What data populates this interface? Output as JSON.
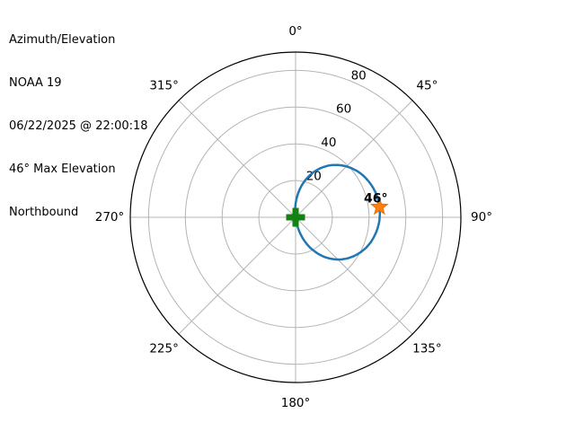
{
  "header": {
    "lines": [
      "Azimuth/Elevation",
      "NOAA 19",
      "06/22/2025 @ 22:00:18",
      "46° Max Elevation",
      "Northbound"
    ]
  },
  "colors": {
    "background": "#ffffff",
    "grid": "#b4b4b4",
    "outer_spine": "#000000",
    "text": "#000000",
    "pass_line": "#1f77b4",
    "observer_marker": "#128212",
    "max_marker_fill": "#ff7f0e",
    "max_marker_edge": "#e8710a"
  },
  "chart_data": {
    "type": "line",
    "subtype": "polar-azimuth-elevation",
    "title": "Azimuth/Elevation",
    "satellite": "NOAA 19",
    "pass_time": "06/22/2025 @ 22:00:18",
    "max_elevation_deg": 46,
    "direction": "Northbound",
    "grid": true,
    "legend": false,
    "theta_zero": "north-top",
    "theta_direction": "clockwise",
    "r_range": [
      0,
      90
    ],
    "azimuth_ticks": [
      {
        "value": 0,
        "label": "0°"
      },
      {
        "value": 45,
        "label": "45°"
      },
      {
        "value": 90,
        "label": "90°"
      },
      {
        "value": 135,
        "label": "135°"
      },
      {
        "value": 180,
        "label": "180°"
      },
      {
        "value": 225,
        "label": "225°"
      },
      {
        "value": 270,
        "label": "270°"
      },
      {
        "value": 315,
        "label": "315°"
      }
    ],
    "elevation_ticks": [
      {
        "value": 20,
        "label": "20"
      },
      {
        "value": 40,
        "label": "40"
      },
      {
        "value": 60,
        "label": "60"
      },
      {
        "value": 80,
        "label": "80"
      }
    ],
    "series": [
      {
        "name": "pass-trajectory",
        "rise_azimuth_deg": 173,
        "set_azimuth_deg": 353,
        "points_az_el": [
          [
            173,
            0.0
          ],
          [
            168,
            5.2
          ],
          [
            163,
            10.2
          ],
          [
            158,
            15.0
          ],
          [
            153,
            19.5
          ],
          [
            148,
            23.6
          ],
          [
            143,
            27.4
          ],
          [
            138,
            30.7
          ],
          [
            133,
            33.7
          ],
          [
            128,
            36.2
          ],
          [
            123,
            38.4
          ],
          [
            118,
            40.3
          ],
          [
            113,
            41.9
          ],
          [
            108,
            43.2
          ],
          [
            103,
            44.2
          ],
          [
            98,
            45.0
          ],
          [
            93,
            45.6
          ],
          [
            88,
            45.9
          ],
          [
            83,
            46.0
          ],
          [
            78,
            45.9
          ],
          [
            73,
            45.6
          ],
          [
            68,
            45.0
          ],
          [
            63,
            44.2
          ],
          [
            58,
            43.2
          ],
          [
            53,
            41.9
          ],
          [
            48,
            40.3
          ],
          [
            43,
            38.4
          ],
          [
            38,
            36.2
          ],
          [
            33,
            33.7
          ],
          [
            28,
            30.7
          ],
          [
            23,
            27.4
          ],
          [
            18,
            23.6
          ],
          [
            13,
            19.5
          ],
          [
            8,
            15.0
          ],
          [
            3,
            10.2
          ],
          [
            -2,
            5.2
          ],
          [
            -7,
            0.0
          ]
        ]
      }
    ],
    "markers": [
      {
        "name": "observer",
        "shape": "plus",
        "az": 0,
        "el": 0,
        "label": ""
      },
      {
        "name": "max-elevation",
        "shape": "star",
        "az": 83,
        "el": 46,
        "label": "46°"
      }
    ]
  }
}
